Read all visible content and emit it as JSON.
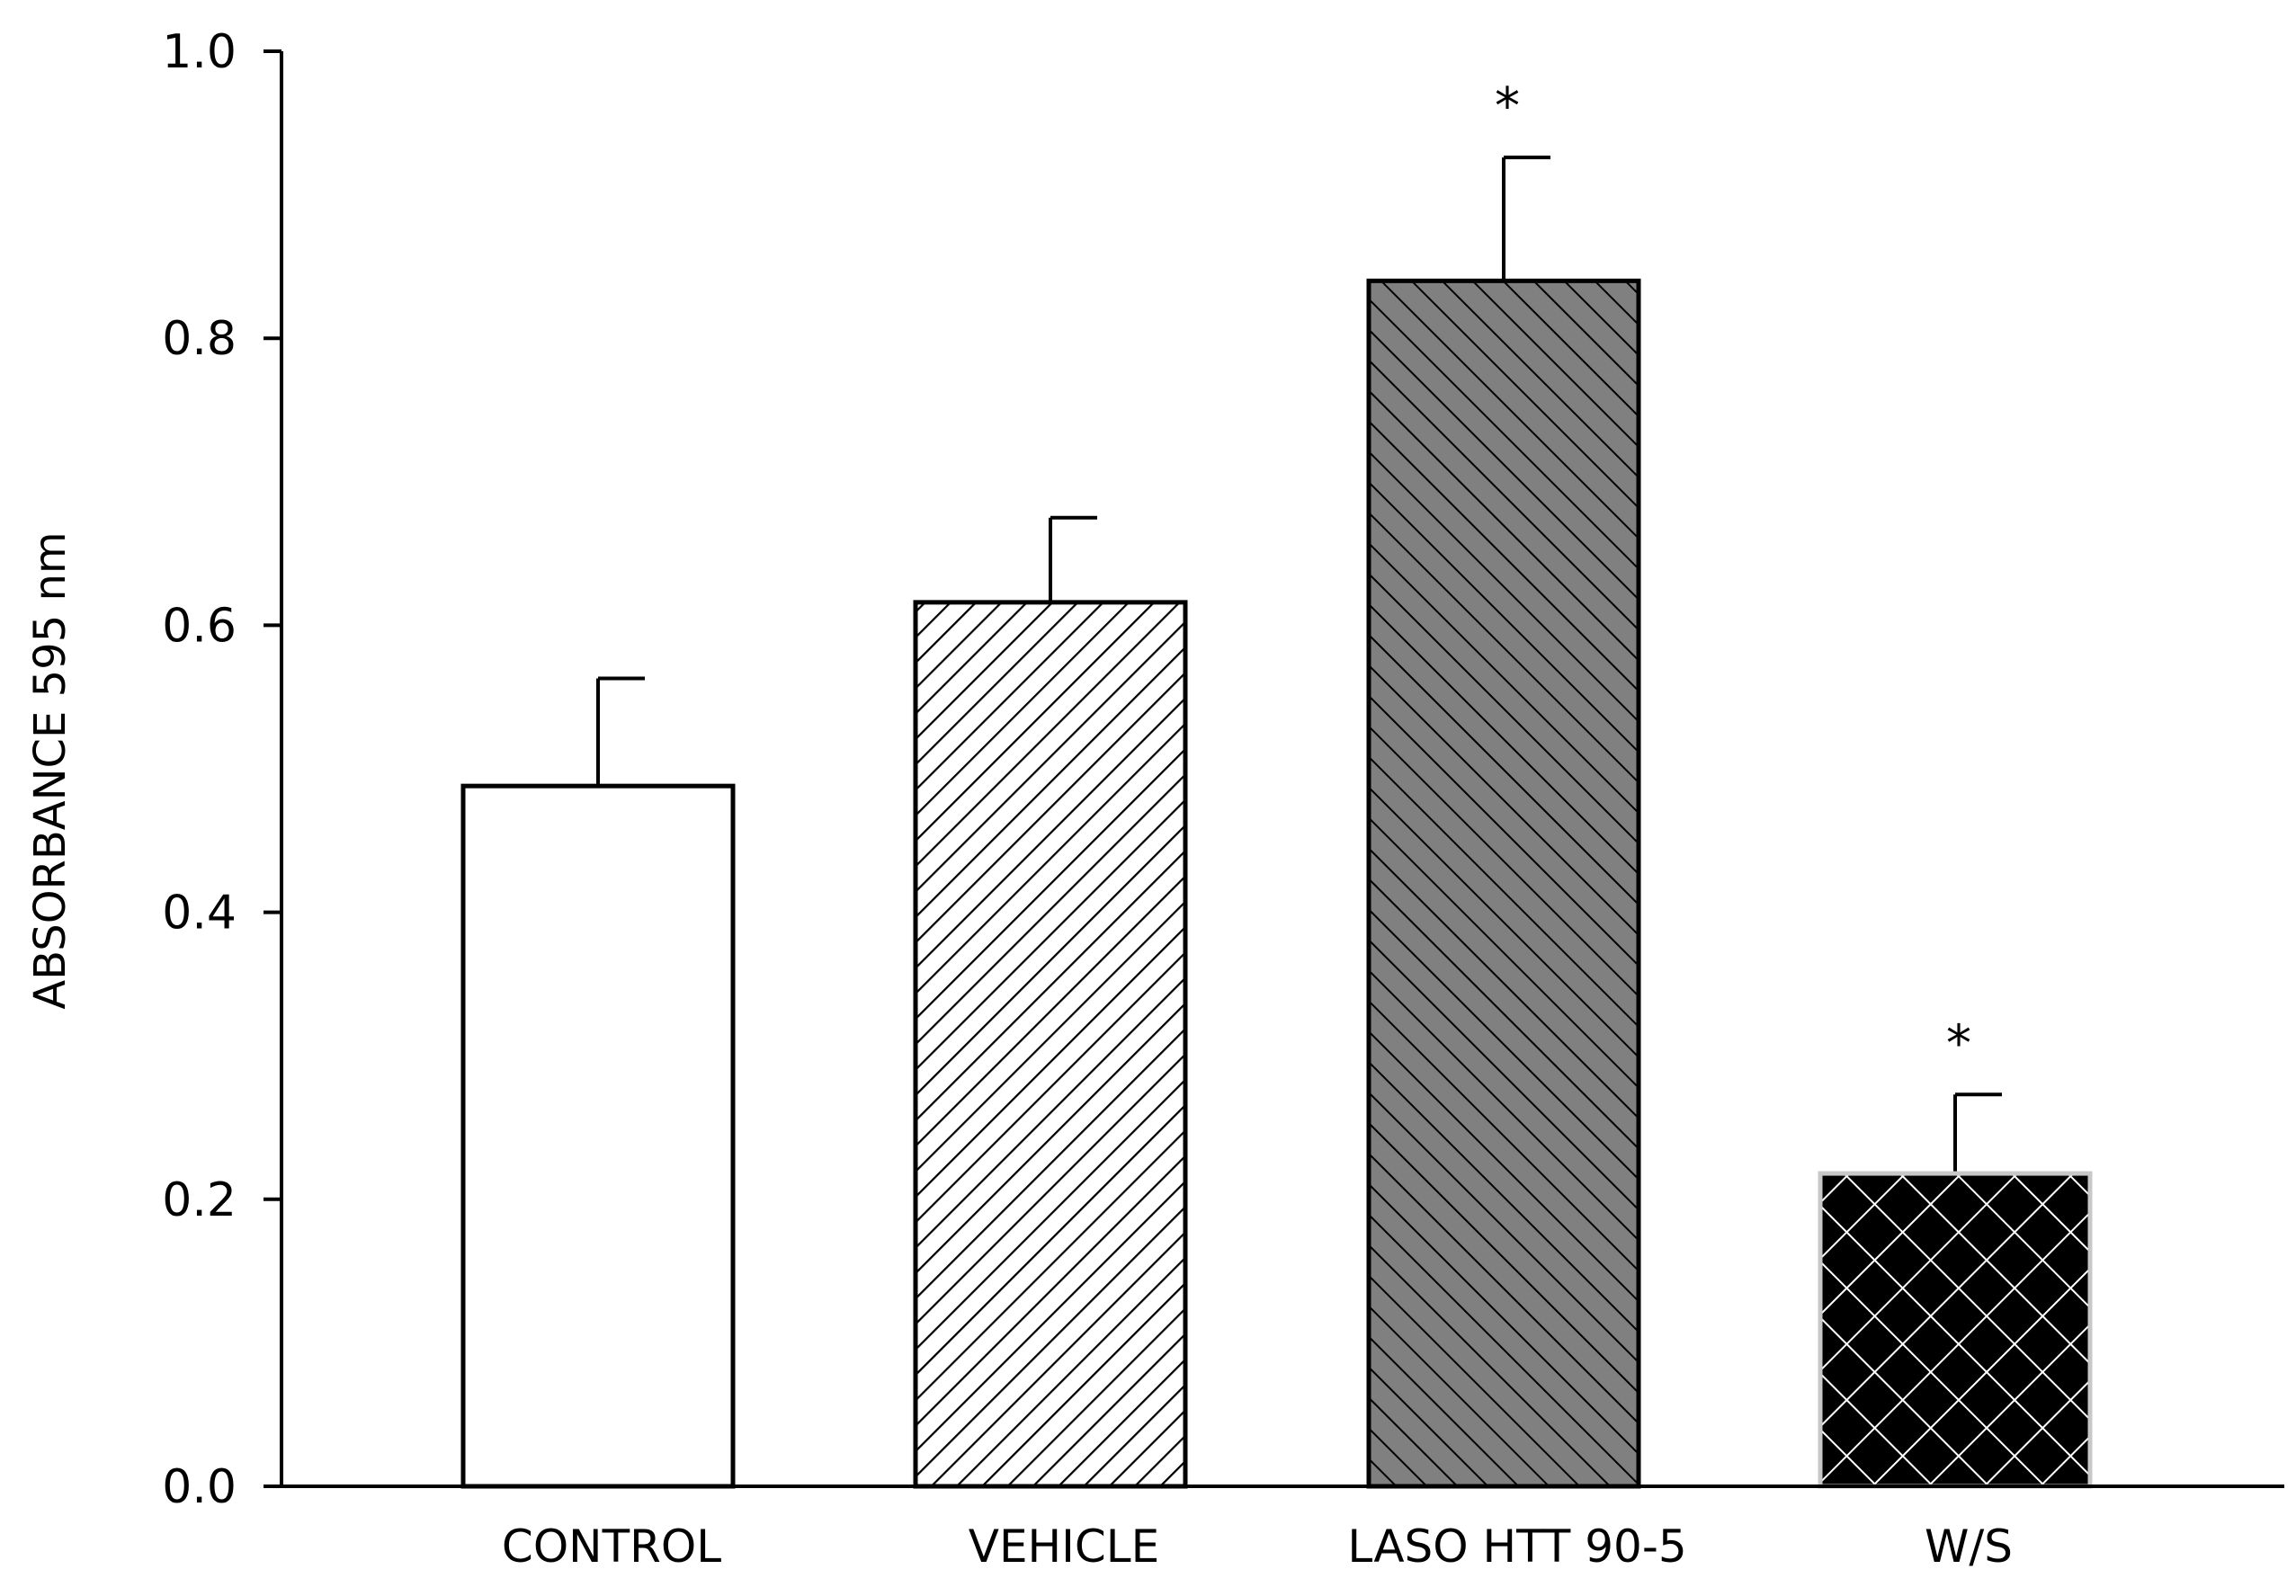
{
  "chart_data": {
    "type": "bar",
    "title": "",
    "xlabel": "",
    "ylabel": "ABSORBANCE 595 nm",
    "ylim": [
      0,
      1.0
    ],
    "yticks": [
      "0.0",
      "0.2",
      "0.4",
      "0.6",
      "0.8",
      "1.0"
    ],
    "grid": false,
    "legend": "none",
    "categories": [
      "CONTROL",
      "VEHICLE",
      "LASO HTT 90-5",
      "W/S"
    ],
    "values": [
      0.488,
      0.616,
      0.84,
      0.218
    ],
    "error_upper": [
      0.075,
      0.059,
      0.086,
      0.055
    ],
    "significance": [
      "",
      "",
      "*",
      "*"
    ],
    "bar_styles": [
      {
        "fill": "#ffffff",
        "pattern": "none",
        "pattern_color": "#000000",
        "edge": "#000000"
      },
      {
        "fill": "#ffffff",
        "pattern": "diagonal-up",
        "pattern_color": "#000000",
        "edge": "#000000"
      },
      {
        "fill": "#808080",
        "pattern": "diagonal-down",
        "pattern_color": "#000000",
        "edge": "#000000"
      },
      {
        "fill": "#000000",
        "pattern": "crosshatch",
        "pattern_color": "#ffffff",
        "edge": "#c8c8c8"
      }
    ]
  }
}
